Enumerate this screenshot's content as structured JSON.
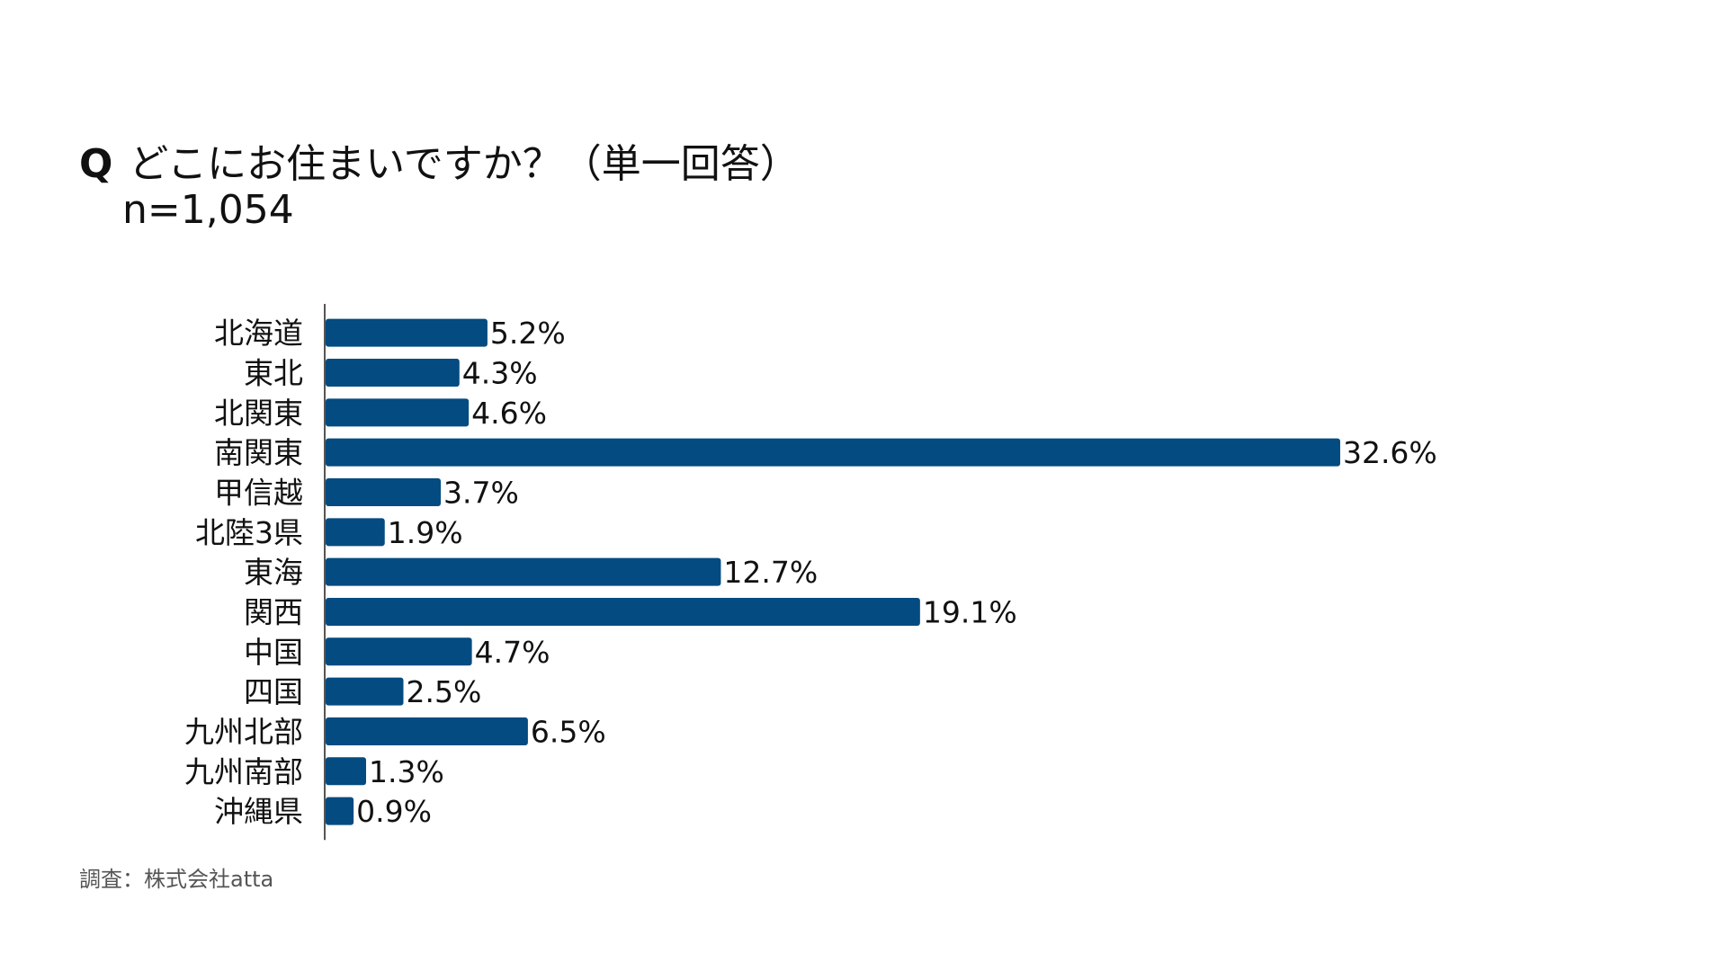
{
  "question": {
    "prefix": "Q",
    "text": "どこにお住まいですか？（単一回答）",
    "sample": "n=1,054"
  },
  "source": "調査：株式会社atta",
  "colors": {
    "bar": "#034b80",
    "axis": "#555555"
  },
  "chart_data": {
    "type": "bar",
    "orientation": "horizontal",
    "categories": [
      "北海道",
      "東北",
      "北関東",
      "南関東",
      "甲信越",
      "北陸3県",
      "東海",
      "関西",
      "中国",
      "四国",
      "九州北部",
      "九州南部",
      "沖縄県"
    ],
    "values": [
      5.2,
      4.3,
      4.6,
      32.6,
      3.7,
      1.9,
      12.7,
      19.1,
      4.7,
      2.5,
      6.5,
      1.3,
      0.9
    ],
    "value_labels": [
      "5.2%",
      "4.3%",
      "4.6%",
      "32.6%",
      "3.7%",
      "1.9%",
      "12.7%",
      "19.1%",
      "4.7%",
      "2.5%",
      "6.5%",
      "1.3%",
      "0.9%"
    ],
    "unit": "%",
    "grid": false,
    "legend": false
  }
}
